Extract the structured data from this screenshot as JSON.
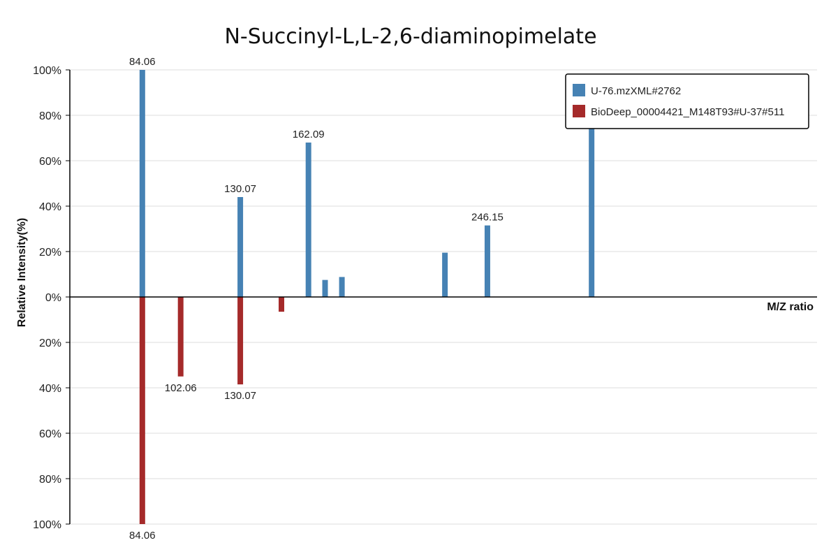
{
  "chart_data": {
    "type": "bar",
    "title": "N-Succinyl-L,L-2,6-diaminopimelate",
    "xlabel": "M/Z ratio",
    "ylabel": "Relative Intensity(%)",
    "yticks_top": [
      "100%",
      "80%",
      "60%",
      "40%",
      "20%",
      "0%"
    ],
    "yticks_bottom": [
      "20%",
      "40%",
      "60%",
      "80%",
      "100%"
    ],
    "ylim": [
      -100,
      100
    ],
    "xlim": [
      50,
      401
    ],
    "grid": true,
    "legend_position": "top-right",
    "series": [
      {
        "name": "U-76.mzXML#2762",
        "color": "#4682B4",
        "direction": "up",
        "peaks": [
          {
            "mz": 84.06,
            "intensity": 100,
            "label": "84.06"
          },
          {
            "mz": 130.07,
            "intensity": 44,
            "label": "130.07"
          },
          {
            "mz": 162.09,
            "intensity": 68,
            "label": "162.09"
          },
          {
            "mz": 169.9,
            "intensity": 7.5,
            "label": ""
          },
          {
            "mz": 177.8,
            "intensity": 8.8,
            "label": ""
          },
          {
            "mz": 226.2,
            "intensity": 19.5,
            "label": ""
          },
          {
            "mz": 246.15,
            "intensity": 31.5,
            "label": "246.15"
          },
          {
            "mz": 295.1,
            "intensity": 75,
            "label": ""
          }
        ]
      },
      {
        "name": "BioDeep_00004421_M148T93#U-37#511",
        "color": "#A52A2A",
        "direction": "down",
        "peaks": [
          {
            "mz": 84.06,
            "intensity": 100,
            "label": "84.06"
          },
          {
            "mz": 102.06,
            "intensity": 35,
            "label": "102.06"
          },
          {
            "mz": 130.07,
            "intensity": 38.5,
            "label": "130.07"
          },
          {
            "mz": 149.4,
            "intensity": 6.5,
            "label": ""
          }
        ]
      }
    ]
  }
}
